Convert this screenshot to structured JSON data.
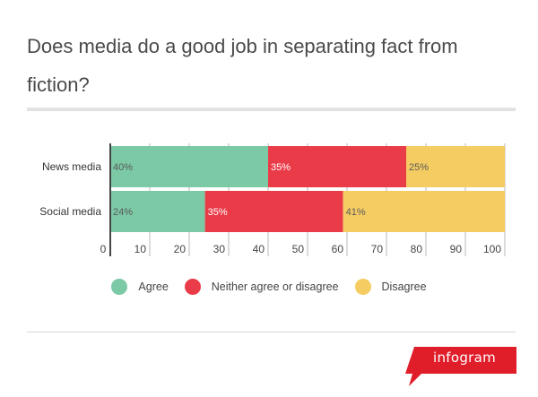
{
  "chart_data": {
    "type": "bar",
    "orientation": "horizontal",
    "stacked": true,
    "title": "Does media do a good job in separating fact from fiction?",
    "categories": [
      "News media",
      "Social media"
    ],
    "series": [
      {
        "name": "Agree",
        "values": [
          40,
          24
        ],
        "labels": [
          "40%",
          "24%"
        ],
        "color": "#7bc9a5"
      },
      {
        "name": "Neither agree or disagree",
        "values": [
          35,
          35
        ],
        "labels": [
          "35%",
          "35%"
        ],
        "color": "#ea3c48"
      },
      {
        "name": "Disagree",
        "values": [
          25,
          41
        ],
        "labels": [
          "25%",
          "41%"
        ],
        "color": "#f5cc62"
      }
    ],
    "xlim": [
      0,
      100
    ],
    "xticks": [
      0,
      10,
      20,
      30,
      40,
      50,
      60,
      70,
      80,
      90,
      100
    ],
    "grid": true,
    "legend_position": "bottom"
  },
  "brand": {
    "name": "infogram",
    "color": "#e01e2a"
  }
}
